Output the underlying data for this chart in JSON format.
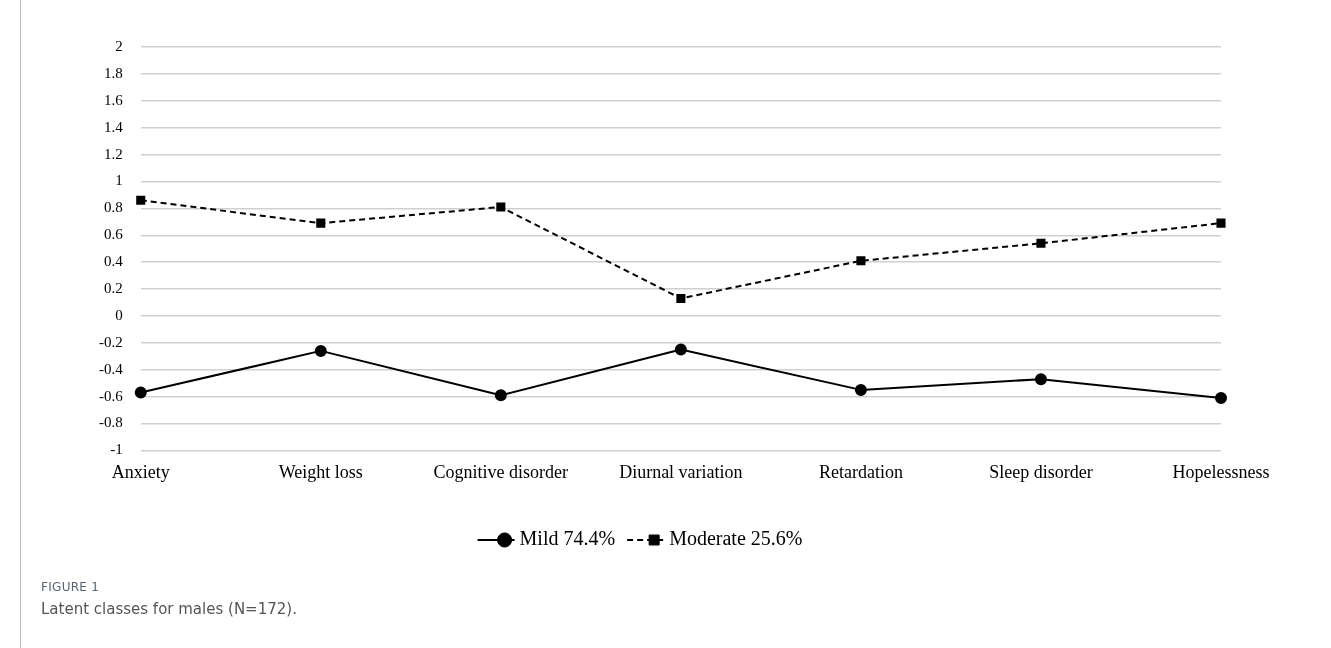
{
  "chart_data": {
    "type": "line",
    "categories": [
      "Anxiety",
      "Weight loss",
      "Cognitive disorder",
      "Diurnal variation",
      "Retardation",
      "Sleep disorder",
      "Hopelessness"
    ],
    "series": [
      {
        "name": "Mild 74.4%",
        "color": "#000000",
        "values": [
          -0.57,
          -0.26,
          -0.59,
          -0.25,
          -0.55,
          -0.47,
          -0.61
        ],
        "marker": "circle",
        "line_style": "solid"
      },
      {
        "name": "Moderate 25.6%",
        "color": "#000000",
        "values": [
          0.86,
          0.69,
          0.81,
          0.13,
          0.41,
          0.54,
          0.69
        ],
        "marker": "square",
        "line_style": "dashed"
      }
    ],
    "ylim": [
      -1,
      2
    ],
    "yticks": [
      -1,
      -0.8,
      -0.6,
      -0.4,
      -0.2,
      0,
      0.2,
      0.4,
      0.6,
      0.8,
      1,
      1.2,
      1.4,
      1.6,
      1.8,
      2
    ],
    "grid": "y",
    "legend": "bottom",
    "annotations": [
      "FIGURE 1",
      "Latent classes for males (N=172)."
    ]
  }
}
